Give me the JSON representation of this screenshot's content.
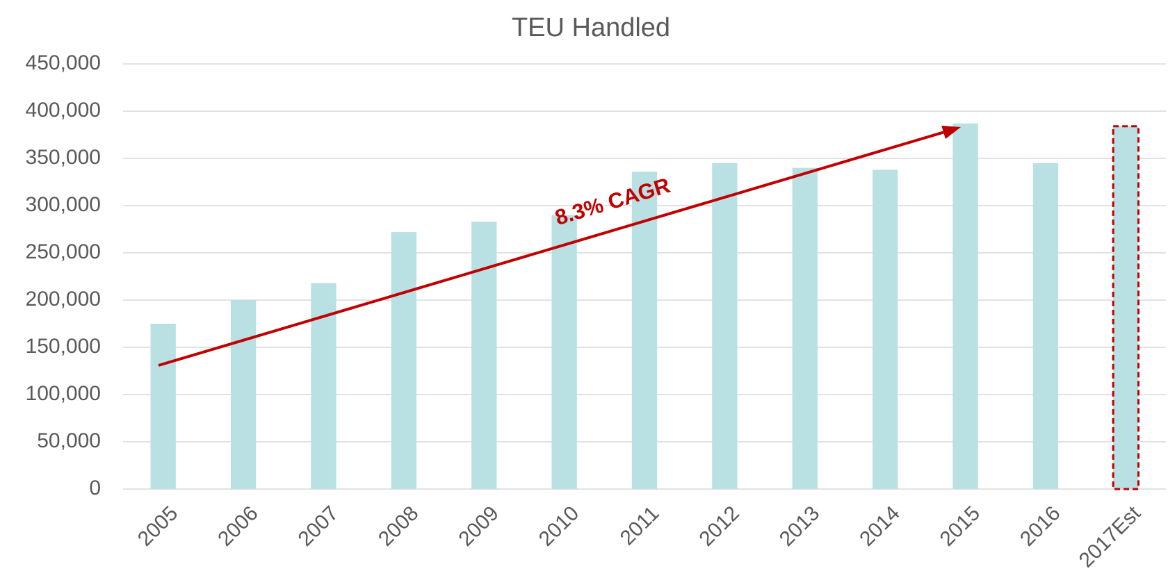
{
  "chart_data": {
    "type": "bar",
    "title": "TEU Handled",
    "categories": [
      "2005",
      "2006",
      "2007",
      "2008",
      "2009",
      "2010",
      "2011",
      "2012",
      "2013",
      "2014",
      "2015",
      "2016",
      "2017Est"
    ],
    "values": [
      175000,
      200000,
      218000,
      272000,
      283000,
      290000,
      336000,
      345000,
      340000,
      338000,
      387000,
      345000,
      384000
    ],
    "color": "#b9e0e3",
    "ylim": [
      0,
      450000
    ],
    "yticks": [
      0,
      {
        "value": 50000,
        "label": "50,000"
      },
      {
        "value": 100000,
        "label": "100,000"
      },
      {
        "value": 150000,
        "label": "150,000"
      },
      {
        "value": 200000,
        "label": "200,000"
      },
      {
        "value": 250000,
        "label": "250,000"
      },
      {
        "value": 300000,
        "label": "300,000"
      },
      {
        "value": 350000,
        "label": "350,000"
      },
      {
        "value": 400000,
        "label": "400,000"
      },
      {
        "value": 450000,
        "label": "450,000"
      }
    ],
    "grid": true,
    "annotation": "8.3% CAGR",
    "annotation_color": "#c00000",
    "highlight": "2017Est"
  }
}
